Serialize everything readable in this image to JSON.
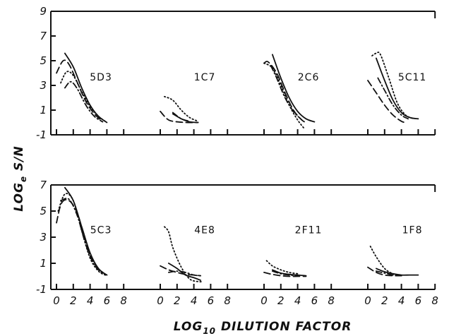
{
  "chart_data": {
    "type": "line",
    "xlabel_parts": [
      "LOG",
      "10",
      " DILUTION FACTOR"
    ],
    "ylabel_parts": [
      "LOG",
      "e",
      " S/N"
    ],
    "row_ylim": [
      [
        -1,
        9
      ],
      [
        -1,
        7
      ]
    ],
    "row_yticks": [
      [
        -1,
        1,
        3,
        5,
        7,
        9
      ],
      [
        -1,
        1,
        3,
        5,
        7
      ]
    ],
    "xlim": [
      0,
      8
    ],
    "xticks": [
      0,
      2,
      4,
      6,
      8
    ],
    "line_styles": [
      "solid",
      "dotted",
      "dashed",
      "dashdot"
    ],
    "panels": [
      {
        "label": "5D3",
        "row": 0,
        "col": 0,
        "series": [
          {
            "style": "solid",
            "points": [
              [
                1,
                5.6
              ],
              [
                2,
                4.5
              ],
              [
                3,
                2.8
              ],
              [
                4,
                1.4
              ],
              [
                5,
                0.5
              ],
              [
                6,
                0.0
              ]
            ]
          },
          {
            "style": "dotted",
            "points": [
              [
                0.5,
                3.2
              ],
              [
                1.2,
                4.1
              ],
              [
                2,
                3.8
              ],
              [
                3,
                2.5
              ],
              [
                4,
                1.3
              ],
              [
                5,
                0.5
              ],
              [
                6,
                0.0
              ]
            ]
          },
          {
            "style": "dashed",
            "points": [
              [
                0,
                4.0
              ],
              [
                0.8,
                5.0
              ],
              [
                1.5,
                4.7
              ],
              [
                2.5,
                3.2
              ],
              [
                3.5,
                1.7
              ],
              [
                4.5,
                0.7
              ],
              [
                5.5,
                0.1
              ]
            ]
          },
          {
            "style": "dashdot",
            "points": [
              [
                1,
                2.8
              ],
              [
                1.7,
                3.3
              ],
              [
                2.5,
                2.7
              ],
              [
                3.5,
                1.4
              ],
              [
                4.5,
                0.5
              ],
              [
                5.5,
                0.05
              ]
            ]
          }
        ]
      },
      {
        "label": "1C7",
        "row": 0,
        "col": 1,
        "series": [
          {
            "style": "solid",
            "points": [
              [
                1.5,
                0.7
              ],
              [
                2.5,
                0.3
              ],
              [
                3.5,
                0.05
              ],
              [
                4.5,
                0.0
              ]
            ]
          },
          {
            "style": "dotted",
            "points": [
              [
                0.5,
                2.1
              ],
              [
                1.5,
                1.8
              ],
              [
                2.5,
                1.0
              ],
              [
                3.5,
                0.4
              ],
              [
                4.5,
                0.1
              ]
            ]
          },
          {
            "style": "dashed",
            "points": [
              [
                0,
                0.9
              ],
              [
                0.8,
                0.3
              ],
              [
                1.5,
                0.1
              ],
              [
                3,
                0.0
              ],
              [
                4.5,
                0.0
              ]
            ]
          },
          {
            "style": "dashdot",
            "points": [
              [
                1.5,
                0.8
              ],
              [
                2.5,
                0.3
              ],
              [
                3.5,
                0.1
              ]
            ]
          }
        ]
      },
      {
        "label": "2C6",
        "row": 0,
        "col": 2,
        "series": [
          {
            "style": "solid",
            "points": [
              [
                1,
                5.5
              ],
              [
                2,
                3.6
              ],
              [
                3,
                2.0
              ],
              [
                4,
                0.9
              ],
              [
                5,
                0.3
              ],
              [
                6,
                0.05
              ]
            ]
          },
          {
            "style": "dotted",
            "points": [
              [
                0,
                4.8
              ],
              [
                1,
                4.4
              ],
              [
                2,
                3.0
              ],
              [
                3,
                1.4
              ],
              [
                4,
                0.2
              ],
              [
                4.8,
                -0.5
              ]
            ]
          },
          {
            "style": "dashed",
            "points": [
              [
                0,
                4.8
              ],
              [
                0.5,
                4.9
              ],
              [
                1.5,
                4.0
              ],
              [
                2.5,
                2.4
              ],
              [
                3.5,
                1.0
              ],
              [
                4.5,
                0.2
              ],
              [
                5,
                0.0
              ]
            ]
          },
          {
            "style": "dashdot",
            "points": [
              [
                0.8,
                4.6
              ],
              [
                1.5,
                3.6
              ],
              [
                2.5,
                2.0
              ],
              [
                3.5,
                0.9
              ],
              [
                4.5,
                0.2
              ]
            ]
          }
        ]
      },
      {
        "label": "5C11",
        "row": 0,
        "col": 3,
        "series": [
          {
            "style": "solid",
            "points": [
              [
                1,
                5.2
              ],
              [
                2,
                3.4
              ],
              [
                3,
                1.8
              ],
              [
                4,
                0.8
              ],
              [
                5,
                0.4
              ],
              [
                6,
                0.3
              ]
            ]
          },
          {
            "style": "dotted",
            "points": [
              [
                0.5,
                5.4
              ],
              [
                1,
                5.6
              ],
              [
                1.5,
                5.5
              ],
              [
                2.5,
                3.6
              ],
              [
                3.5,
                1.6
              ],
              [
                4.5,
                0.6
              ],
              [
                5.5,
                0.3
              ]
            ]
          },
          {
            "style": "dashed",
            "points": [
              [
                0,
                3.4
              ],
              [
                1,
                2.4
              ],
              [
                2,
                1.4
              ],
              [
                3,
                0.6
              ],
              [
                4,
                0.1
              ],
              [
                4.5,
                0.0
              ]
            ]
          },
          {
            "style": "dashdot",
            "points": [
              [
                1.2,
                3.6
              ],
              [
                2,
                2.6
              ],
              [
                3,
                1.4
              ],
              [
                4,
                0.6
              ],
              [
                4.8,
                0.3
              ]
            ]
          }
        ]
      },
      {
        "label": "5C3",
        "row": 1,
        "col": 0,
        "series": [
          {
            "style": "solid",
            "points": [
              [
                1,
                6.8
              ],
              [
                2,
                5.8
              ],
              [
                3,
                3.8
              ],
              [
                4,
                1.8
              ],
              [
                5,
                0.6
              ],
              [
                6,
                0.1
              ]
            ]
          },
          {
            "style": "dotted",
            "points": [
              [
                0.2,
                5.0
              ],
              [
                1,
                6.3
              ],
              [
                2,
                5.8
              ],
              [
                3,
                3.5
              ],
              [
                4,
                1.4
              ],
              [
                5,
                0.4
              ],
              [
                6,
                0.05
              ]
            ]
          },
          {
            "style": "dashed",
            "points": [
              [
                0,
                4.1
              ],
              [
                0.6,
                5.6
              ],
              [
                1.5,
                5.8
              ],
              [
                2.5,
                4.8
              ],
              [
                3.5,
                2.6
              ],
              [
                4.5,
                1.0
              ],
              [
                5.5,
                0.3
              ],
              [
                6,
                0.1
              ]
            ]
          },
          {
            "style": "dashdot",
            "points": [
              [
                0.5,
                5.8
              ],
              [
                1.5,
                5.9
              ],
              [
                2.5,
                4.6
              ],
              [
                3.5,
                2.4
              ],
              [
                4.5,
                0.9
              ],
              [
                5.5,
                0.2
              ]
            ]
          }
        ]
      },
      {
        "label": "4E8",
        "row": 1,
        "col": 1,
        "series": [
          {
            "style": "solid",
            "points": [
              [
                1,
                1.0
              ],
              [
                2,
                0.6
              ],
              [
                3,
                0.1
              ],
              [
                4,
                -0.1
              ],
              [
                4.8,
                -0.3
              ]
            ]
          },
          {
            "style": "dotted",
            "points": [
              [
                0.5,
                3.8
              ],
              [
                1,
                3.4
              ],
              [
                1.5,
                2.2
              ],
              [
                2.5,
                0.7
              ],
              [
                3.5,
                -0.2
              ],
              [
                4.5,
                -0.4
              ],
              [
                5,
                -0.4
              ]
            ]
          },
          {
            "style": "dashed",
            "points": [
              [
                0,
                0.8
              ],
              [
                1,
                0.5
              ],
              [
                2,
                0.3
              ],
              [
                3,
                0.15
              ],
              [
                4,
                0.1
              ],
              [
                4.8,
                0.05
              ]
            ]
          },
          {
            "style": "dashdot",
            "points": [
              [
                1,
                0.3
              ],
              [
                2,
                0.4
              ],
              [
                3,
                0.3
              ],
              [
                4,
                0.1
              ],
              [
                4.8,
                0.05
              ]
            ]
          }
        ]
      },
      {
        "label": "2F11",
        "row": 1,
        "col": 2,
        "series": [
          {
            "style": "solid",
            "points": [
              [
                1,
                0.5
              ],
              [
                2,
                0.25
              ],
              [
                3,
                0.15
              ],
              [
                4,
                0.1
              ],
              [
                5,
                0.05
              ]
            ]
          },
          {
            "style": "dotted",
            "points": [
              [
                0.3,
                1.2
              ],
              [
                1,
                0.8
              ],
              [
                2,
                0.5
              ],
              [
                3,
                0.3
              ],
              [
                4,
                0.2
              ]
            ]
          },
          {
            "style": "dashed",
            "points": [
              [
                0,
                0.3
              ],
              [
                1,
                0.15
              ],
              [
                2,
                0.05
              ],
              [
                3,
                0.0
              ],
              [
                4,
                0.0
              ],
              [
                5,
                0.0
              ]
            ]
          },
          {
            "style": "dashdot",
            "points": [
              [
                1,
                0.4
              ],
              [
                2,
                0.2
              ],
              [
                3,
                0.1
              ],
              [
                4,
                0.05
              ]
            ]
          }
        ]
      },
      {
        "label": "1F8",
        "row": 1,
        "col": 3,
        "series": [
          {
            "style": "solid",
            "points": [
              [
                1,
                0.6
              ],
              [
                2,
                0.35
              ],
              [
                3,
                0.2
              ],
              [
                4,
                0.1
              ],
              [
                5,
                0.1
              ],
              [
                6,
                0.1
              ]
            ]
          },
          {
            "style": "dotted",
            "points": [
              [
                0.3,
                2.3
              ],
              [
                1,
                1.5
              ],
              [
                2,
                0.6
              ],
              [
                3,
                0.2
              ],
              [
                4,
                0.05
              ]
            ]
          },
          {
            "style": "dashed",
            "points": [
              [
                0,
                0.7
              ],
              [
                1,
                0.3
              ],
              [
                2,
                0.1
              ],
              [
                3,
                0.05
              ],
              [
                4,
                0.05
              ]
            ]
          },
          {
            "style": "dashdot",
            "points": [
              [
                1,
                0.4
              ],
              [
                2,
                0.25
              ],
              [
                3,
                0.1
              ],
              [
                4,
                0.05
              ]
            ]
          }
        ]
      }
    ]
  }
}
